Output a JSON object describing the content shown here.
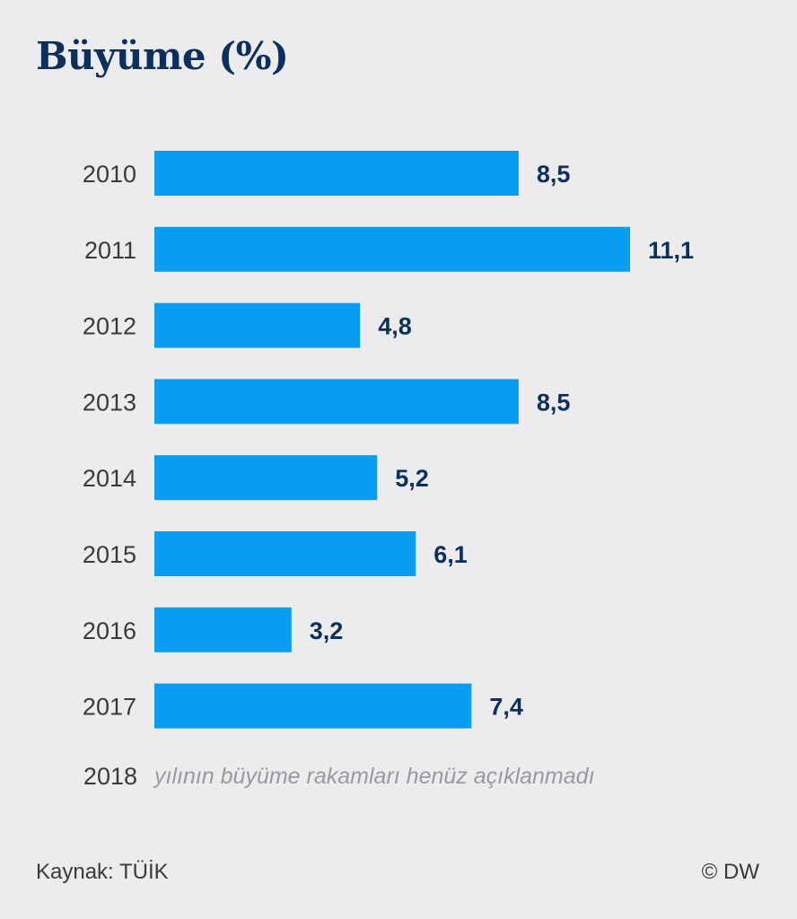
{
  "chart_data": {
    "type": "bar",
    "orientation": "horizontal",
    "title": "Büyüme (%)",
    "categories": [
      "2010",
      "2011",
      "2012",
      "2013",
      "2014",
      "2015",
      "2016",
      "2017"
    ],
    "values": [
      8.5,
      11.1,
      4.8,
      8.5,
      5.2,
      6.1,
      3.2,
      7.4
    ],
    "value_labels": [
      "8,5",
      "11,1",
      "4,8",
      "8,5",
      "5,2",
      "6,1",
      "3,2",
      "7,4"
    ],
    "note": {
      "year": "2018",
      "text": "yılının büyüme rakamları henüz açıklanmadı"
    },
    "bar_color": "#0a9cf0",
    "background_color": "#ececee",
    "title_color": "#0c2f5c",
    "value_label_color": "#0c2f5c",
    "grid": false
  },
  "footer": {
    "source": "Kaynak: TÜİK",
    "credit": "© DW"
  }
}
